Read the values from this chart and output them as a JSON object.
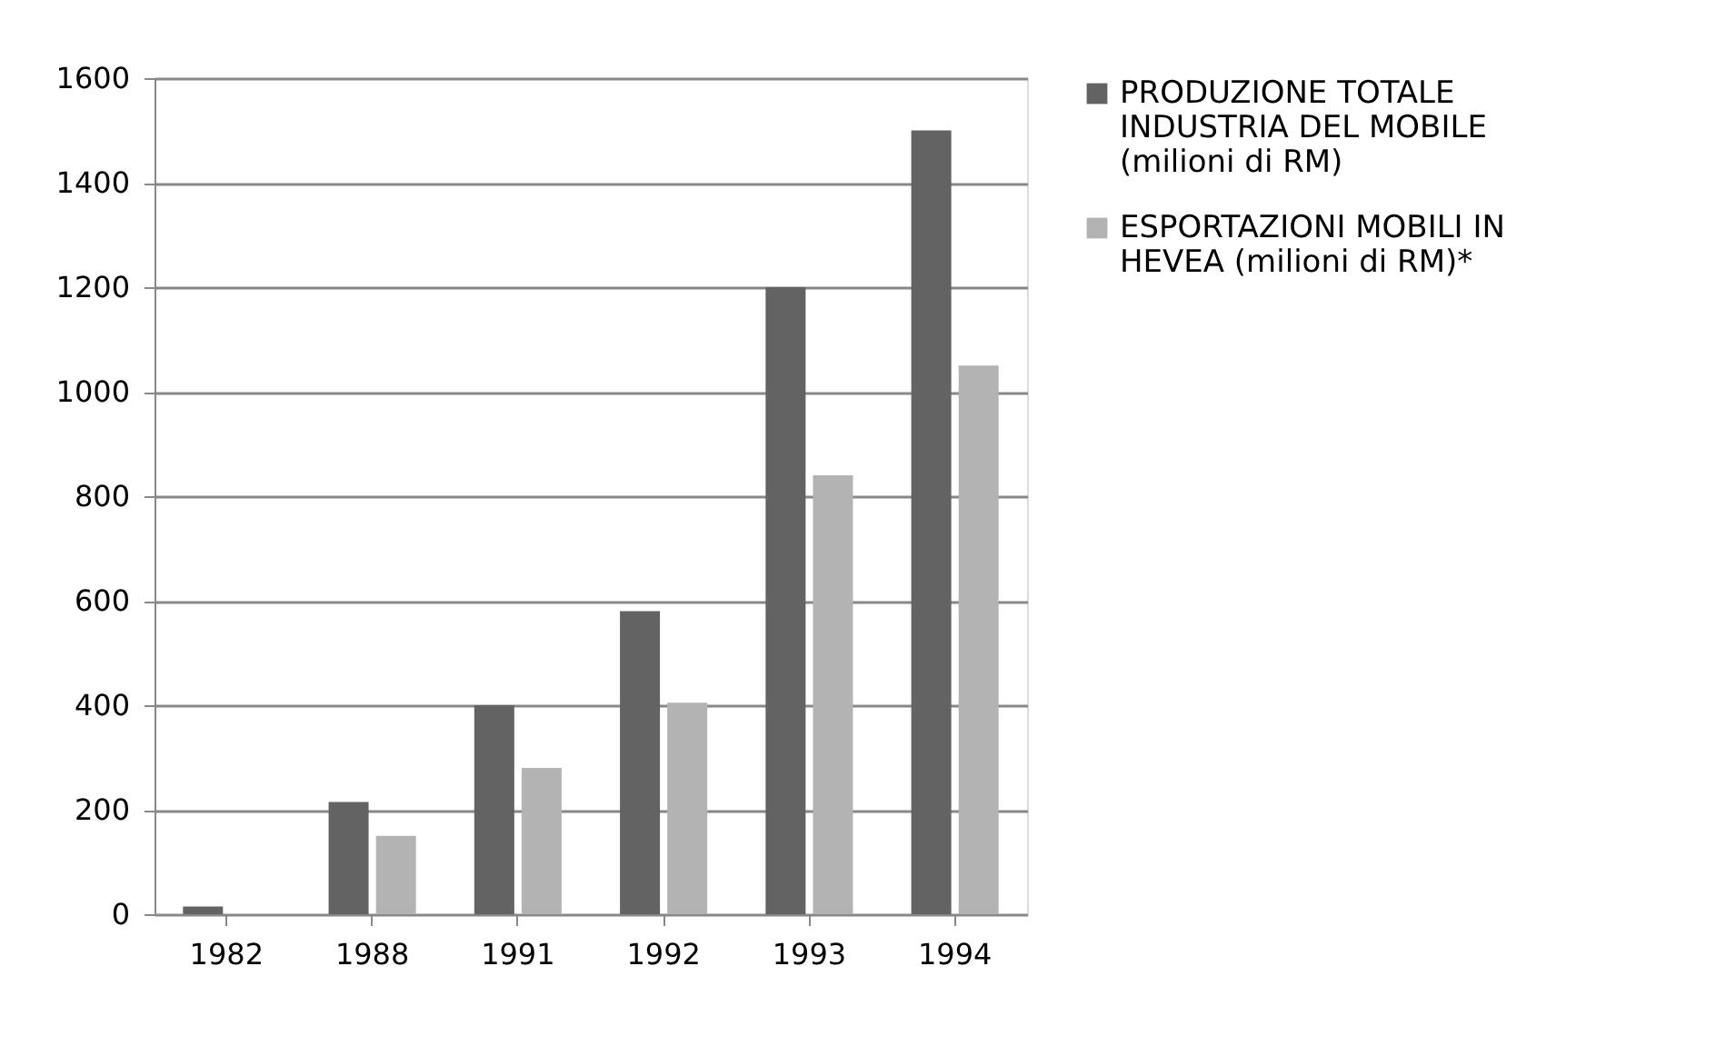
{
  "chart_data": {
    "type": "bar",
    "categories": [
      "1982",
      "1988",
      "1991",
      "1992",
      "1993",
      "1994"
    ],
    "series": [
      {
        "name": "PRODUZIONE TOTALE INDUSTRIA DEL MOBILE (milioni di RM)",
        "color": "#636363",
        "values": [
          15,
          215,
          400,
          580,
          1200,
          1500
        ]
      },
      {
        "name": "ESPORTAZIONI MOBILI IN HEVEA (milioni di RM)*",
        "color": "#b3b3b3",
        "values": [
          null,
          150,
          280,
          405,
          840,
          1050
        ]
      }
    ],
    "ylim": [
      0,
      1600
    ],
    "yticks": [
      0,
      200,
      400,
      600,
      800,
      1000,
      1200,
      1400,
      1600
    ],
    "grid": "y",
    "legend": "right"
  }
}
